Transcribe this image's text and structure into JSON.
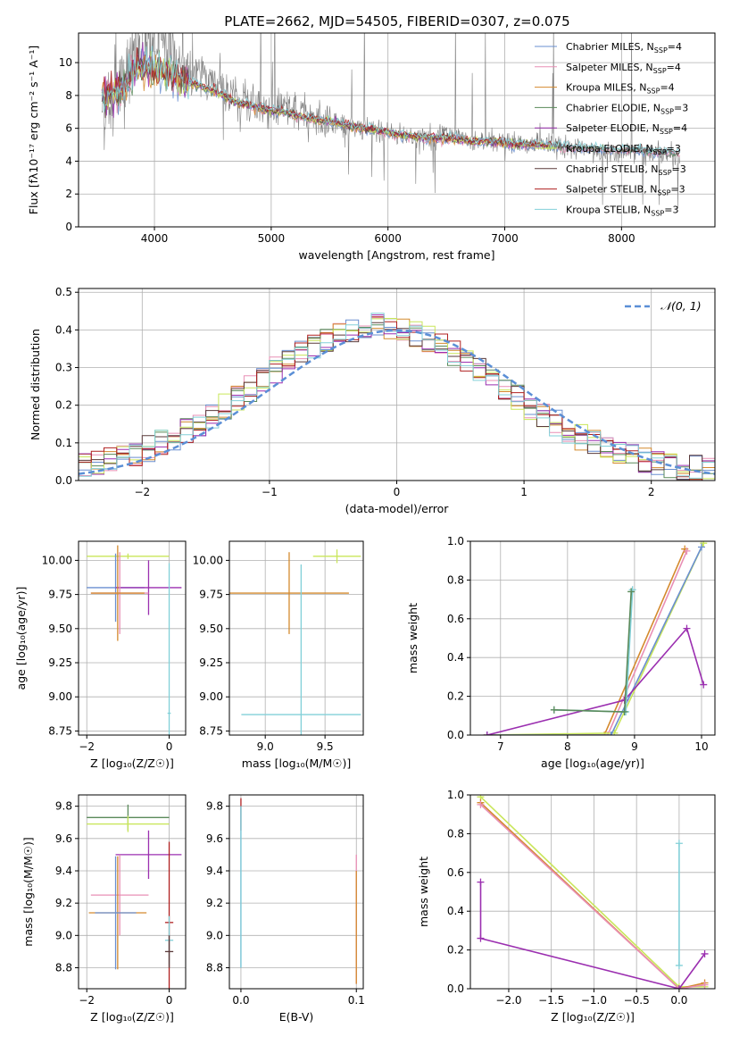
{
  "title": "PLATE=2662, MJD=54505, FIBERID=0307, z=0.075",
  "colors": {
    "grid": "#b0b0b0",
    "data": "#808080",
    "gauss": "#5b8fd6"
  },
  "models": [
    {
      "name": "Chabrier MILES",
      "nssp": "4",
      "color": "#6a8fd0"
    },
    {
      "name": "Salpeter MILES",
      "nssp": "4",
      "color": "#e88fb5"
    },
    {
      "name": "Kroupa MILES",
      "nssp": "4",
      "color": "#d48a2e"
    },
    {
      "name": "Chabrier ELODIE",
      "nssp": "3",
      "color": "#5a8a5a"
    },
    {
      "name": "Salpeter ELODIE",
      "nssp": "4",
      "color": "#9b2fb0"
    },
    {
      "name": "Kroupa ELODIE",
      "nssp": "3",
      "color": "#c9e65a"
    },
    {
      "name": "Chabrier STELIB",
      "nssp": "3",
      "color": "#5a3a3a"
    },
    {
      "name": "Salpeter STELIB",
      "nssp": "3",
      "color": "#b02020"
    },
    {
      "name": "Kroupa STELIB",
      "nssp": "3",
      "color": "#82d0d8"
    }
  ],
  "chart_data": [
    {
      "id": "spectrum",
      "type": "line",
      "xlabel": "wavelength [Angstrom, rest frame]",
      "ylabel": "Flux [fλ10⁻¹⁷ erg cm⁻² s⁻¹ A⁻¹]",
      "xlim": [
        3350,
        8800
      ],
      "ylim": [
        0,
        11.8
      ],
      "xticks": [
        4000,
        5000,
        6000,
        7000,
        8000
      ],
      "yticks": [
        0,
        2,
        4,
        6,
        8,
        10
      ],
      "x": [
        3550,
        3700,
        3850,
        4000,
        4150,
        4300,
        4500,
        4700,
        4900,
        5100,
        5300,
        5500,
        5700,
        5900,
        6100,
        6300,
        6500,
        6700,
        6900,
        7100,
        7300,
        7500,
        7700,
        7900,
        8100,
        8300,
        8500
      ],
      "series": [
        {
          "name": "data",
          "values": [
            7.5,
            8.0,
            10.8,
            11.0,
            10.5,
            9.6,
            9.0,
            7.9,
            7.2,
            7.2,
            6.7,
            6.5,
            6.1,
            5.9,
            5.6,
            5.4,
            5.7,
            5.2,
            5.3,
            5.0,
            5.1,
            4.8,
            4.6,
            4.6,
            4.6,
            4.5,
            4.2
          ]
        },
        {
          "name": "model",
          "values": [
            8.0,
            8.2,
            9.6,
            9.6,
            9.2,
            8.8,
            8.3,
            7.6,
            7.2,
            7.0,
            6.6,
            6.4,
            6.1,
            5.9,
            5.6,
            5.4,
            5.4,
            5.2,
            5.2,
            5.0,
            5.0,
            4.9,
            4.8,
            4.7,
            4.7,
            4.6,
            4.5
          ]
        }
      ]
    },
    {
      "id": "residuals",
      "type": "line",
      "xlabel": "(data-model)/error",
      "ylabel": "Normed distribution",
      "legend": "𝒩(0, 1)",
      "xlim": [
        -2.5,
        2.5
      ],
      "ylim": [
        0,
        0.51
      ],
      "xticks": [
        -2,
        -1,
        0,
        1,
        2
      ],
      "yticks": [
        0.0,
        0.1,
        0.2,
        0.3,
        0.4,
        0.5
      ]
    },
    {
      "id": "age-z",
      "type": "scatter",
      "xlabel": "Z [log₁₀(Z/Z☉)]",
      "ylabel": "age  [log₁₀(age/yr)]",
      "xlim": [
        -2.2,
        0.4
      ],
      "ylim": [
        8.72,
        10.14
      ],
      "xticks": [
        -2,
        0
      ],
      "yticks": [
        8.75,
        9.0,
        9.25,
        9.5,
        9.75,
        10.0
      ],
      "points": [
        {
          "x": -1.0,
          "y": 10.03,
          "xerr": 1.0,
          "yerr": 0.02,
          "model": 5
        },
        {
          "x": -1.3,
          "y": 9.8,
          "xerr": 0.7,
          "yerr": 0.25,
          "model": 0
        },
        {
          "x": -0.5,
          "y": 9.8,
          "xerr": 0.8,
          "yerr": 0.2,
          "model": 4
        },
        {
          "x": -1.2,
          "y": 9.76,
          "xerr": 0.7,
          "yerr": 0.3,
          "model": 1
        },
        {
          "x": -1.25,
          "y": 9.76,
          "xerr": 0.65,
          "yerr": 0.35,
          "model": 2
        },
        {
          "x": 0.0,
          "y": 8.88,
          "xerr": 0.04,
          "yerr": 1.1,
          "model": 8
        }
      ]
    },
    {
      "id": "age-mass",
      "type": "scatter",
      "xlabel": "mass [log₁₀(M/M☉)]",
      "ylabel": "",
      "xlim": [
        8.7,
        9.82
      ],
      "ylim": [
        8.72,
        10.14
      ],
      "xticks": [
        9.0,
        9.5
      ],
      "yticks": [
        8.75,
        9.0,
        9.25,
        9.5,
        9.75,
        10.0
      ],
      "points": [
        {
          "x": 9.6,
          "y": 10.03,
          "xerr": 0.2,
          "yerr": 0.05,
          "model": 5
        },
        {
          "x": 9.2,
          "y": 9.76,
          "xerr": 0.5,
          "yerr": 0.3,
          "model": 2
        },
        {
          "x": 9.3,
          "y": 8.87,
          "xerr": 0.5,
          "yerr": 1.1,
          "model": 8
        }
      ]
    },
    {
      "id": "weight-age",
      "type": "line",
      "xlabel": "age  [log₁₀(age/yr)]",
      "ylabel": "mass weight",
      "xlim": [
        6.55,
        10.2
      ],
      "ylim": [
        0,
        1.0
      ],
      "xticks": [
        7,
        8,
        9,
        10
      ],
      "yticks": [
        0.0,
        0.2,
        0.4,
        0.6,
        0.8,
        1.0
      ],
      "series": [
        {
          "model": 2,
          "x": [
            6.8,
            8.55,
            9.75
          ],
          "y": [
            0.0,
            0.0,
            0.96
          ]
        },
        {
          "model": 1,
          "x": [
            6.8,
            8.6,
            9.78
          ],
          "y": [
            0.0,
            0.0,
            0.95
          ]
        },
        {
          "model": 5,
          "x": [
            6.8,
            8.7,
            10.03
          ],
          "y": [
            0.0,
            0.01,
            0.99
          ]
        },
        {
          "model": 0,
          "x": [
            6.8,
            8.65,
            10.0
          ],
          "y": [
            0.0,
            0.0,
            0.97
          ]
        },
        {
          "model": 4,
          "x": [
            6.8,
            8.85,
            9.78,
            10.03
          ],
          "y": [
            0.0,
            0.18,
            0.55,
            0.26
          ]
        },
        {
          "model": 8,
          "x": [
            7.8,
            8.87,
            8.97
          ],
          "y": [
            0.13,
            0.12,
            0.75
          ]
        },
        {
          "model": 3,
          "x": [
            7.8,
            8.85,
            8.95
          ],
          "y": [
            0.13,
            0.12,
            0.74
          ]
        }
      ]
    },
    {
      "id": "mass-z",
      "type": "scatter",
      "xlabel": "Z [log₁₀(Z/Z☉)]",
      "ylabel": "mass [log₁₀(M/M☉)]",
      "xlim": [
        -2.2,
        0.4
      ],
      "ylim": [
        8.67,
        9.87
      ],
      "xticks": [
        -2,
        0
      ],
      "yticks": [
        8.8,
        9.0,
        9.2,
        9.4,
        9.6,
        9.8
      ],
      "points": [
        {
          "x": -1.0,
          "y": 9.73,
          "xerr": 1.0,
          "yerr": 0.08,
          "model": 3
        },
        {
          "x": -1.0,
          "y": 9.69,
          "xerr": 1.0,
          "yerr": 0.05,
          "model": 5
        },
        {
          "x": -0.5,
          "y": 9.5,
          "xerr": 0.8,
          "yerr": 0.15,
          "model": 4
        },
        {
          "x": -1.2,
          "y": 9.25,
          "xerr": 0.7,
          "yerr": 0.25,
          "model": 1
        },
        {
          "x": -1.25,
          "y": 9.14,
          "xerr": 0.7,
          "yerr": 0.35,
          "model": 2
        },
        {
          "x": -1.3,
          "y": 9.14,
          "xerr": 0.5,
          "yerr": 0.35,
          "model": 0
        },
        {
          "x": 0.0,
          "y": 9.08,
          "xerr": 0.1,
          "yerr": 0.5,
          "model": 7
        },
        {
          "x": 0.0,
          "y": 8.97,
          "xerr": 0.1,
          "yerr": 0.15,
          "model": 8
        },
        {
          "x": 0.0,
          "y": 8.9,
          "xerr": 0.1,
          "yerr": 0.1,
          "model": 6
        }
      ]
    },
    {
      "id": "mass-ebv",
      "type": "scatter",
      "xlabel": "E(B-V)",
      "ylabel": "",
      "xlim": [
        -0.01,
        0.106
      ],
      "ylim": [
        8.67,
        9.87
      ],
      "xticks": [
        0.0,
        0.1
      ],
      "yticks": [
        8.8,
        9.0,
        9.2,
        9.4,
        9.6,
        9.8
      ],
      "points": [
        {
          "x": 0.0,
          "y": 9.75,
          "xerr": 0.0,
          "yerr": 0.1,
          "model": 7
        },
        {
          "x": 0.0,
          "y": 9.3,
          "xerr": 0.0,
          "yerr": 0.5,
          "model": 0
        },
        {
          "x": 0.0,
          "y": 9.3,
          "xerr": 0.0,
          "yerr": 0.5,
          "model": 8
        },
        {
          "x": 0.1,
          "y": 9.1,
          "xerr": 0.0,
          "yerr": 0.4,
          "model": 1
        },
        {
          "x": 0.1,
          "y": 9.05,
          "xerr": 0.0,
          "yerr": 0.35,
          "model": 2
        }
      ]
    },
    {
      "id": "weight-z",
      "type": "line",
      "xlabel": "Z [log₁₀(Z/Z☉)]",
      "ylabel": "mass weight",
      "xlim": [
        -2.45,
        0.42
      ],
      "ylim": [
        0,
        1.0
      ],
      "xticks": [
        -2.0,
        -1.5,
        -1.0,
        -0.5,
        0.0
      ],
      "yticks": [
        0.0,
        0.2,
        0.4,
        0.6,
        0.8,
        1.0
      ],
      "series": [
        {
          "model": 5,
          "x": [
            -2.33,
            0.0,
            0.3
          ],
          "y": [
            0.99,
            0.01,
            0.01
          ]
        },
        {
          "model": 2,
          "x": [
            -2.33,
            0.0,
            0.3
          ],
          "y": [
            0.96,
            0.0,
            0.03
          ]
        },
        {
          "model": 1,
          "x": [
            -2.33,
            0.0,
            0.3
          ],
          "y": [
            0.95,
            0.0,
            0.02
          ]
        },
        {
          "model": 4,
          "x": [
            -2.33,
            -2.33,
            0.0,
            0.3
          ],
          "y": [
            0.55,
            0.26,
            0.0,
            0.18
          ]
        },
        {
          "model": 8,
          "x": [
            0.0,
            0.0
          ],
          "y": [
            0.12,
            0.75
          ]
        }
      ]
    }
  ]
}
